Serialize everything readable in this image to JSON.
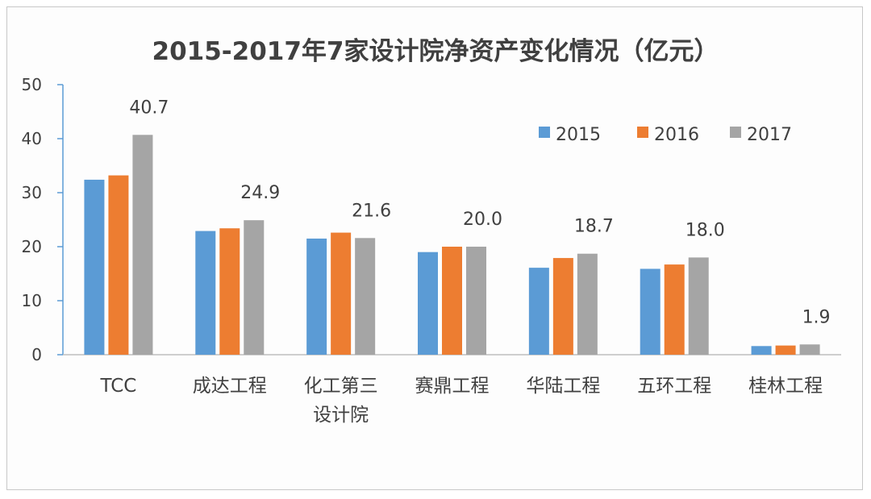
{
  "chart_data": {
    "type": "bar",
    "title": "2015-2017年7家设计院净资产变化情况（亿元）",
    "xlabel": "",
    "ylabel": "",
    "ylim": [
      0,
      50
    ],
    "yticks": [
      0,
      10,
      20,
      30,
      40,
      50
    ],
    "grid": false,
    "legend_position": "top-right",
    "categories": [
      [
        "TCC"
      ],
      [
        "成达工程"
      ],
      [
        "化工第三",
        "设计院"
      ],
      [
        "赛鼎工程"
      ],
      [
        "华陆工程"
      ],
      [
        "五环工程"
      ],
      [
        "桂林工程"
      ]
    ],
    "series": [
      {
        "name": "2015",
        "color": "#5b9bd5",
        "values": [
          32.4,
          22.9,
          21.5,
          19.0,
          16.1,
          15.9,
          1.6
        ]
      },
      {
        "name": "2016",
        "color": "#ed7d31",
        "values": [
          33.2,
          23.4,
          22.6,
          20.0,
          17.9,
          16.7,
          1.7
        ]
      },
      {
        "name": "2017",
        "color": "#a5a5a5",
        "values": [
          40.7,
          24.9,
          21.6,
          20.0,
          18.7,
          18.0,
          1.9
        ]
      }
    ],
    "data_labels": [
      "40.7",
      "24.9",
      "21.6",
      "20.0",
      "18.7",
      "18.0",
      "1.9"
    ]
  }
}
